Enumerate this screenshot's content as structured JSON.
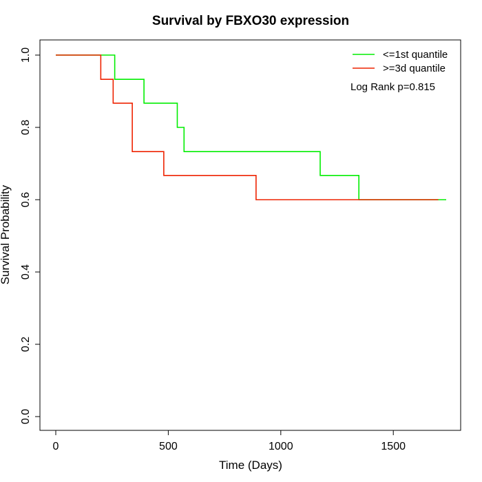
{
  "chart_data": {
    "type": "line",
    "step": true,
    "title": "Survival by FBXO30 expression",
    "xlabel": "Time (Days)",
    "ylabel": "Survival Probability",
    "xlim": [
      0,
      1750
    ],
    "ylim": [
      0,
      1.0
    ],
    "x_ticks": [
      0,
      500,
      1000,
      1500
    ],
    "y_ticks": [
      0.0,
      0.2,
      0.4,
      0.6,
      0.8,
      1.0
    ],
    "x_tick_labels": [
      "0",
      "500",
      "1000",
      "1500"
    ],
    "y_tick_labels": [
      "0.0",
      "0.2",
      "0.4",
      "0.6",
      "0.8",
      "1.0"
    ],
    "grid": false,
    "legend_position": "top-right",
    "series": [
      {
        "name": "<=1st quantile",
        "color": "#00ee00",
        "x": [
          0,
          262,
          392,
          540,
          570,
          1175,
          1347,
          1735
        ],
        "y": [
          1.0,
          0.933,
          0.867,
          0.8,
          0.733,
          0.667,
          0.6,
          0.6
        ]
      },
      {
        "name": ">=3d quantile",
        "color": "#ee2200",
        "x": [
          0,
          200,
          255,
          340,
          480,
          890,
          1700
        ],
        "y": [
          1.0,
          0.933,
          0.867,
          0.733,
          0.667,
          0.6,
          0.6
        ]
      }
    ],
    "annotations": [
      "Log Rank p=0.815"
    ]
  }
}
